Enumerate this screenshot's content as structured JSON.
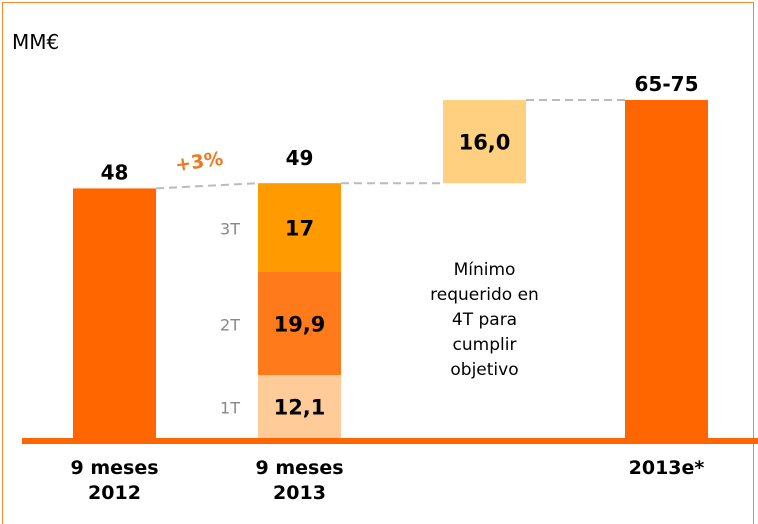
{
  "chart_data": {
    "type": "waterfall",
    "unit_label": "MM€",
    "ylim": [
      0,
      75
    ],
    "bars": [
      {
        "label": "9 meses 2012",
        "value": 48,
        "color": "#ff6600"
      },
      {
        "label": "9 meses 2013",
        "value": 49,
        "segments": [
          {
            "name": "1T",
            "value": 12.1,
            "value_label": "12,1",
            "color": "#ffcc99"
          },
          {
            "name": "2T",
            "value": 19.9,
            "value_label": "19,9",
            "color": "#ff7a1a"
          },
          {
            "name": "3T",
            "value": 17,
            "color": "#ff9a00"
          }
        ]
      },
      {
        "value": 16.0,
        "value_label": "16,0",
        "color": "#ffd080"
      },
      {
        "label": "2013e*",
        "value": 65,
        "value_label": "65-75",
        "color": "#ff6600"
      }
    ],
    "growth_label": "+3%",
    "annotation": "Mínimo requerido en 4T para cumplir objetivo",
    "baseline_color": "#ff6600",
    "connector_color": "#bbbbbb"
  }
}
